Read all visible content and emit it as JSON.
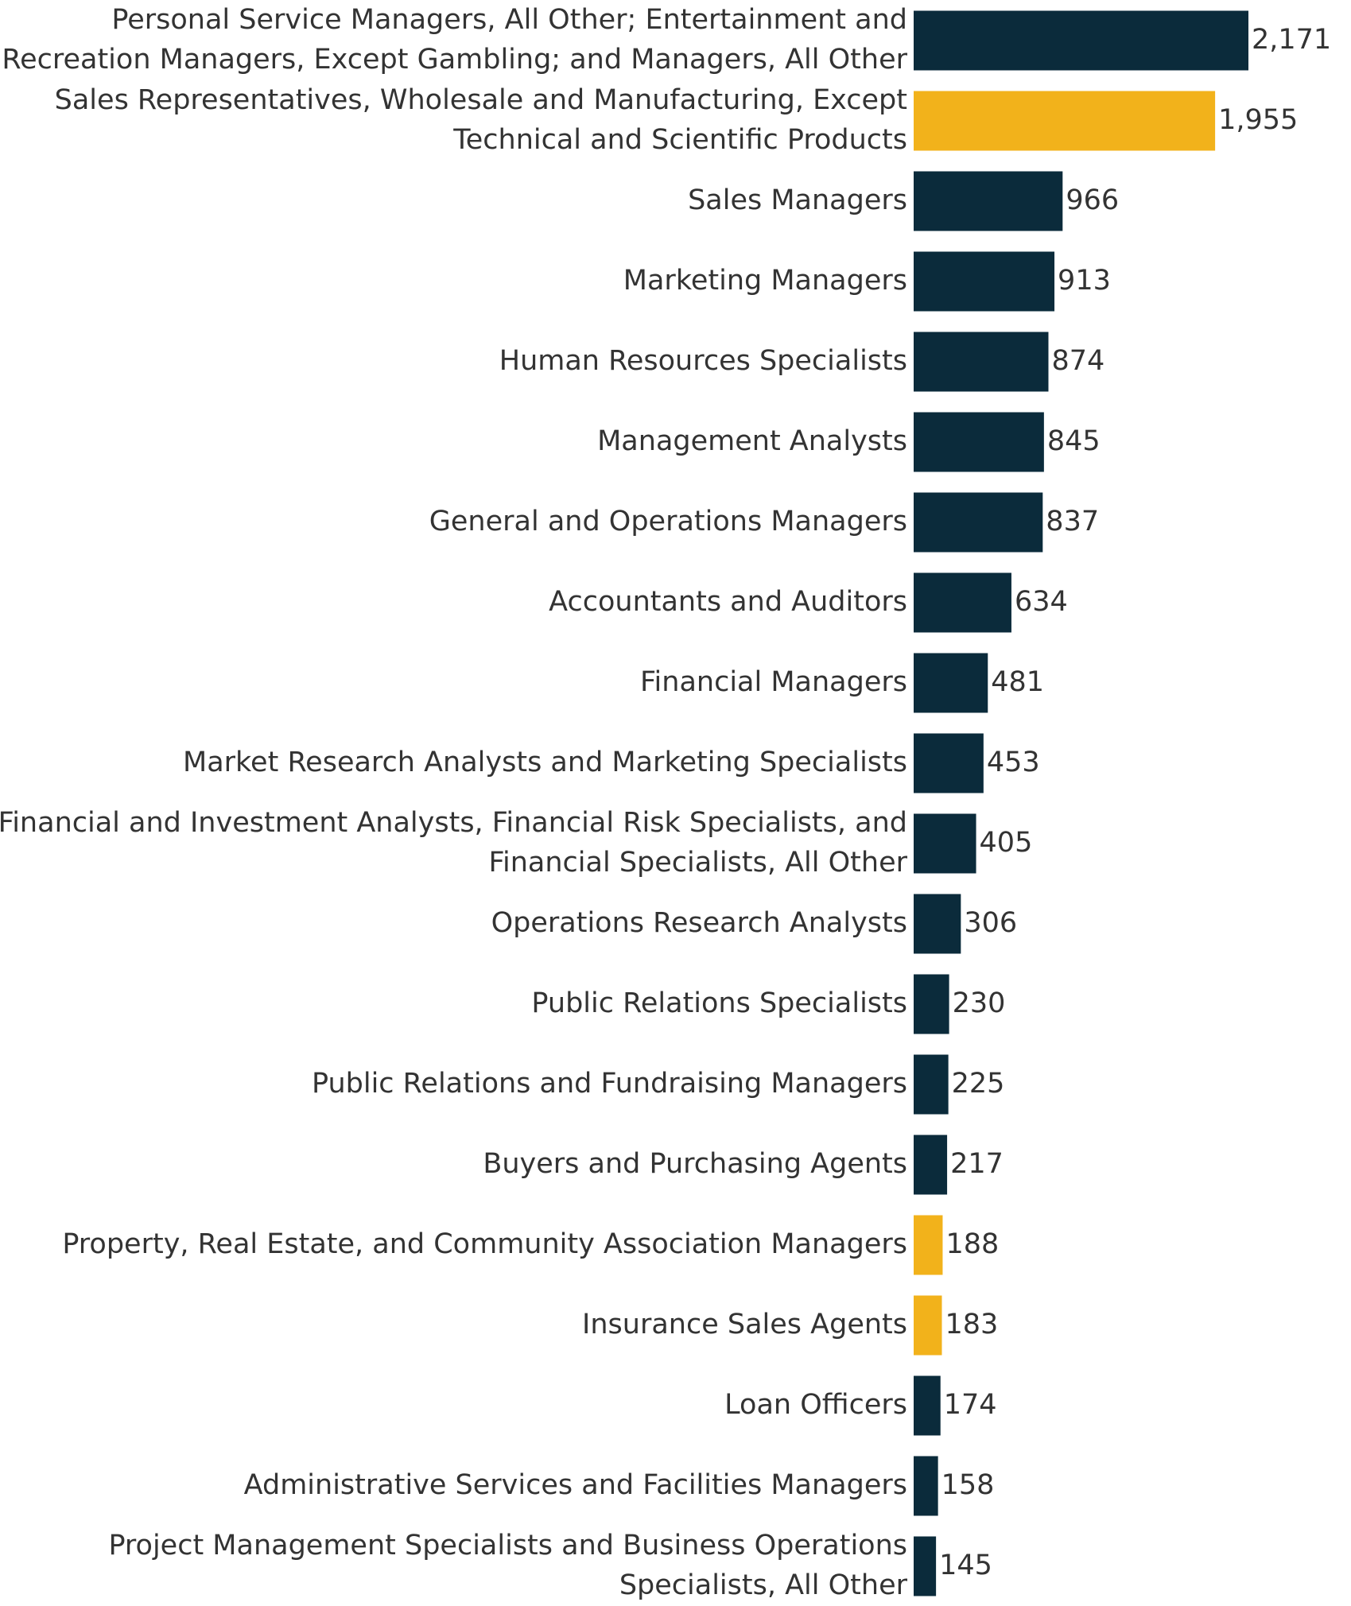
{
  "chart_data": {
    "type": "bar",
    "orientation": "horizontal",
    "categories": [
      "Personal Service Managers, All Other; Entertainment and Recreation Managers, Except Gambling; and Managers, All Other",
      "Sales Representatives, Wholesale and Manufacturing, Except Technical and Scientific Products",
      "Sales Managers",
      "Marketing Managers",
      "Human Resources Specialists",
      "Management Analysts",
      "General and Operations Managers",
      "Accountants and Auditors",
      "Financial Managers",
      "Market Research Analysts and Marketing Specialists",
      "Financial and Investment Analysts, Financial Risk Specialists, and Financial Specialists, All Other",
      "Operations Research Analysts",
      "Public Relations Specialists",
      "Public Relations and Fundraising Managers",
      "Buyers and Purchasing Agents",
      "Property, Real Estate, and Community Association Managers",
      "Insurance Sales Agents",
      "Loan Officers",
      "Administrative Services and Facilities Managers",
      "Project Management Specialists and Business Operations Specialists, All Other"
    ],
    "label_lines": [
      [
        "Personal Service Managers, All Other; Entertainment and",
        "Recreation Managers, Except Gambling; and Managers, All Other"
      ],
      [
        "Sales Representatives, Wholesale and Manufacturing, Except",
        "Technical and Scientific Products"
      ],
      [
        "Sales Managers"
      ],
      [
        "Marketing Managers"
      ],
      [
        "Human Resources Specialists"
      ],
      [
        "Management Analysts"
      ],
      [
        "General and Operations Managers"
      ],
      [
        "Accountants and Auditors"
      ],
      [
        "Financial Managers"
      ],
      [
        "Market Research Analysts and Marketing Specialists"
      ],
      [
        "Financial and Investment Analysts, Financial Risk Specialists, and",
        "Financial Specialists, All Other"
      ],
      [
        "Operations Research Analysts"
      ],
      [
        "Public Relations Specialists"
      ],
      [
        "Public Relations and Fundraising Managers"
      ],
      [
        "Buyers and Purchasing Agents"
      ],
      [
        "Property, Real Estate, and Community Association Managers"
      ],
      [
        "Insurance Sales Agents"
      ],
      [
        "Loan Officers"
      ],
      [
        "Administrative Services and Facilities Managers"
      ],
      [
        "Project Management Specialists and Business Operations",
        "Specialists, All Other"
      ]
    ],
    "values": [
      2171,
      1955,
      966,
      913,
      874,
      845,
      837,
      634,
      481,
      453,
      405,
      306,
      230,
      225,
      217,
      188,
      183,
      174,
      158,
      145
    ],
    "value_labels": [
      "2,171",
      "1,955",
      "966",
      "913",
      "874",
      "845",
      "837",
      "634",
      "481",
      "453",
      "405",
      "306",
      "230",
      "225",
      "217",
      "188",
      "183",
      "174",
      "158",
      "145"
    ],
    "highlighted": [
      false,
      true,
      false,
      false,
      false,
      false,
      false,
      false,
      false,
      false,
      false,
      false,
      false,
      false,
      false,
      true,
      true,
      false,
      false,
      false
    ],
    "colors": {
      "default": "#0b2b3b",
      "highlight": "#f2b21b"
    },
    "xlim": [
      0,
      2171
    ],
    "grid": false,
    "legend": "none",
    "title": "",
    "xlabel": "",
    "ylabel": ""
  }
}
